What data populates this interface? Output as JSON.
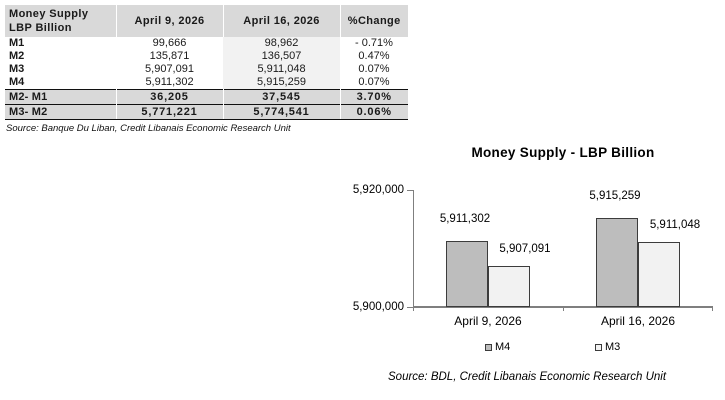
{
  "table": {
    "header": {
      "title_line1": "Money Supply",
      "title_line2": "LBP Billion",
      "col_apr9": "April 9, 2026",
      "col_apr16": "April 16, 2026",
      "col_change": "%Change"
    },
    "rows": [
      {
        "label": "M1",
        "apr9": "99,666",
        "apr16": "98,962",
        "change": "- 0.71%",
        "emphasis": false
      },
      {
        "label": "M2",
        "apr9": "135,871",
        "apr16": "136,507",
        "change": "0.47%",
        "emphasis": false
      },
      {
        "label": "M3",
        "apr9": "5,907,091",
        "apr16": "5,911,048",
        "change": "0.07%",
        "emphasis": false
      },
      {
        "label": "M4",
        "apr9": "5,911,302",
        "apr16": "5,915,259",
        "change": "0.07%",
        "emphasis": false
      },
      {
        "label": "M2- M1",
        "apr9": "36,205",
        "apr16": "37,545",
        "change": "3.70%",
        "emphasis": true
      },
      {
        "label": "M3- M2",
        "apr9": "5,771,221",
        "apr16": "5,774,541",
        "change": "0.06%",
        "emphasis": true
      }
    ],
    "source": "Source: Banque Du Liban, Credit Libanais Economic Research Unit"
  },
  "chart_data": {
    "type": "bar",
    "title": "Money Supply - LBP Billion",
    "categories": [
      "April 9, 2026",
      "April 16, 2026"
    ],
    "series": [
      {
        "name": "M4",
        "values": [
          5911302,
          5915259
        ],
        "color": "#bdbdbd"
      },
      {
        "name": "M3",
        "values": [
          5907091,
          5911048
        ],
        "color": "#f2f2f2"
      }
    ],
    "ylim": [
      5900000,
      5920000
    ],
    "yticks": [
      5900000,
      5920000
    ],
    "grid": false,
    "legend_position": "bottom",
    "source": "Source: BDL, Credit Libanais Economic Research Unit"
  },
  "colors": {
    "table_header_bg": "#d9d9d9",
    "table_summary_bg": "#d9d9d9",
    "apr16_column_bg": "#f2f2f2",
    "bar_m4": "#bdbdbd",
    "bar_m3": "#f2f2f2",
    "axis": "#7f7f7f",
    "rule": "#101010"
  }
}
